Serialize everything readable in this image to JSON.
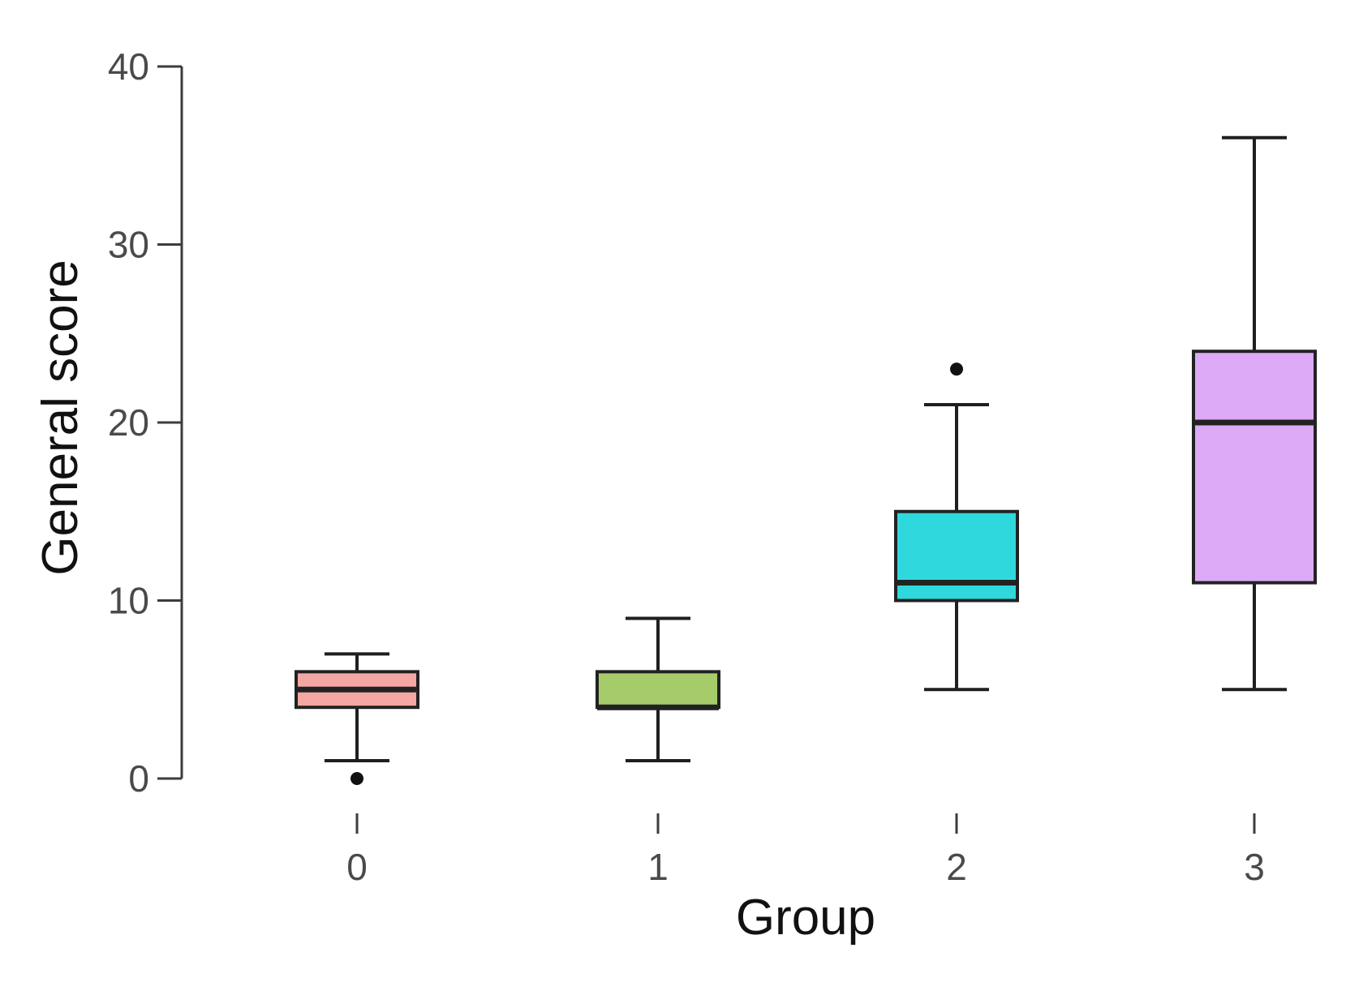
{
  "chart_data": {
    "type": "box",
    "title": "",
    "xlabel": "Group",
    "ylabel": "General score",
    "ylim": [
      0,
      40
    ],
    "yticks": [
      "0",
      "10",
      "20",
      "30",
      "40"
    ],
    "grid": false,
    "categories": [
      "0",
      "1",
      "2",
      "3"
    ],
    "boxes": [
      {
        "category": "0",
        "whisker_low": 1,
        "q1": 4,
        "median": 5,
        "q3": 6,
        "whisker_high": 7,
        "outliers": [
          0
        ],
        "color": "#f4a7a3"
      },
      {
        "category": "1",
        "whisker_low": 1,
        "q1": 4,
        "median": 4,
        "q3": 6,
        "whisker_high": 9,
        "outliers": [],
        "color": "#a6cc6a"
      },
      {
        "category": "2",
        "whisker_low": 5,
        "q1": 10,
        "median": 11,
        "q3": 15,
        "whisker_high": 21,
        "outliers": [
          23
        ],
        "color": "#2fd8dc"
      },
      {
        "category": "3",
        "whisker_low": 5,
        "q1": 11,
        "median": 20,
        "q3": 24,
        "whisker_high": 36,
        "outliers": [],
        "color": "#dcaaf6"
      }
    ]
  }
}
